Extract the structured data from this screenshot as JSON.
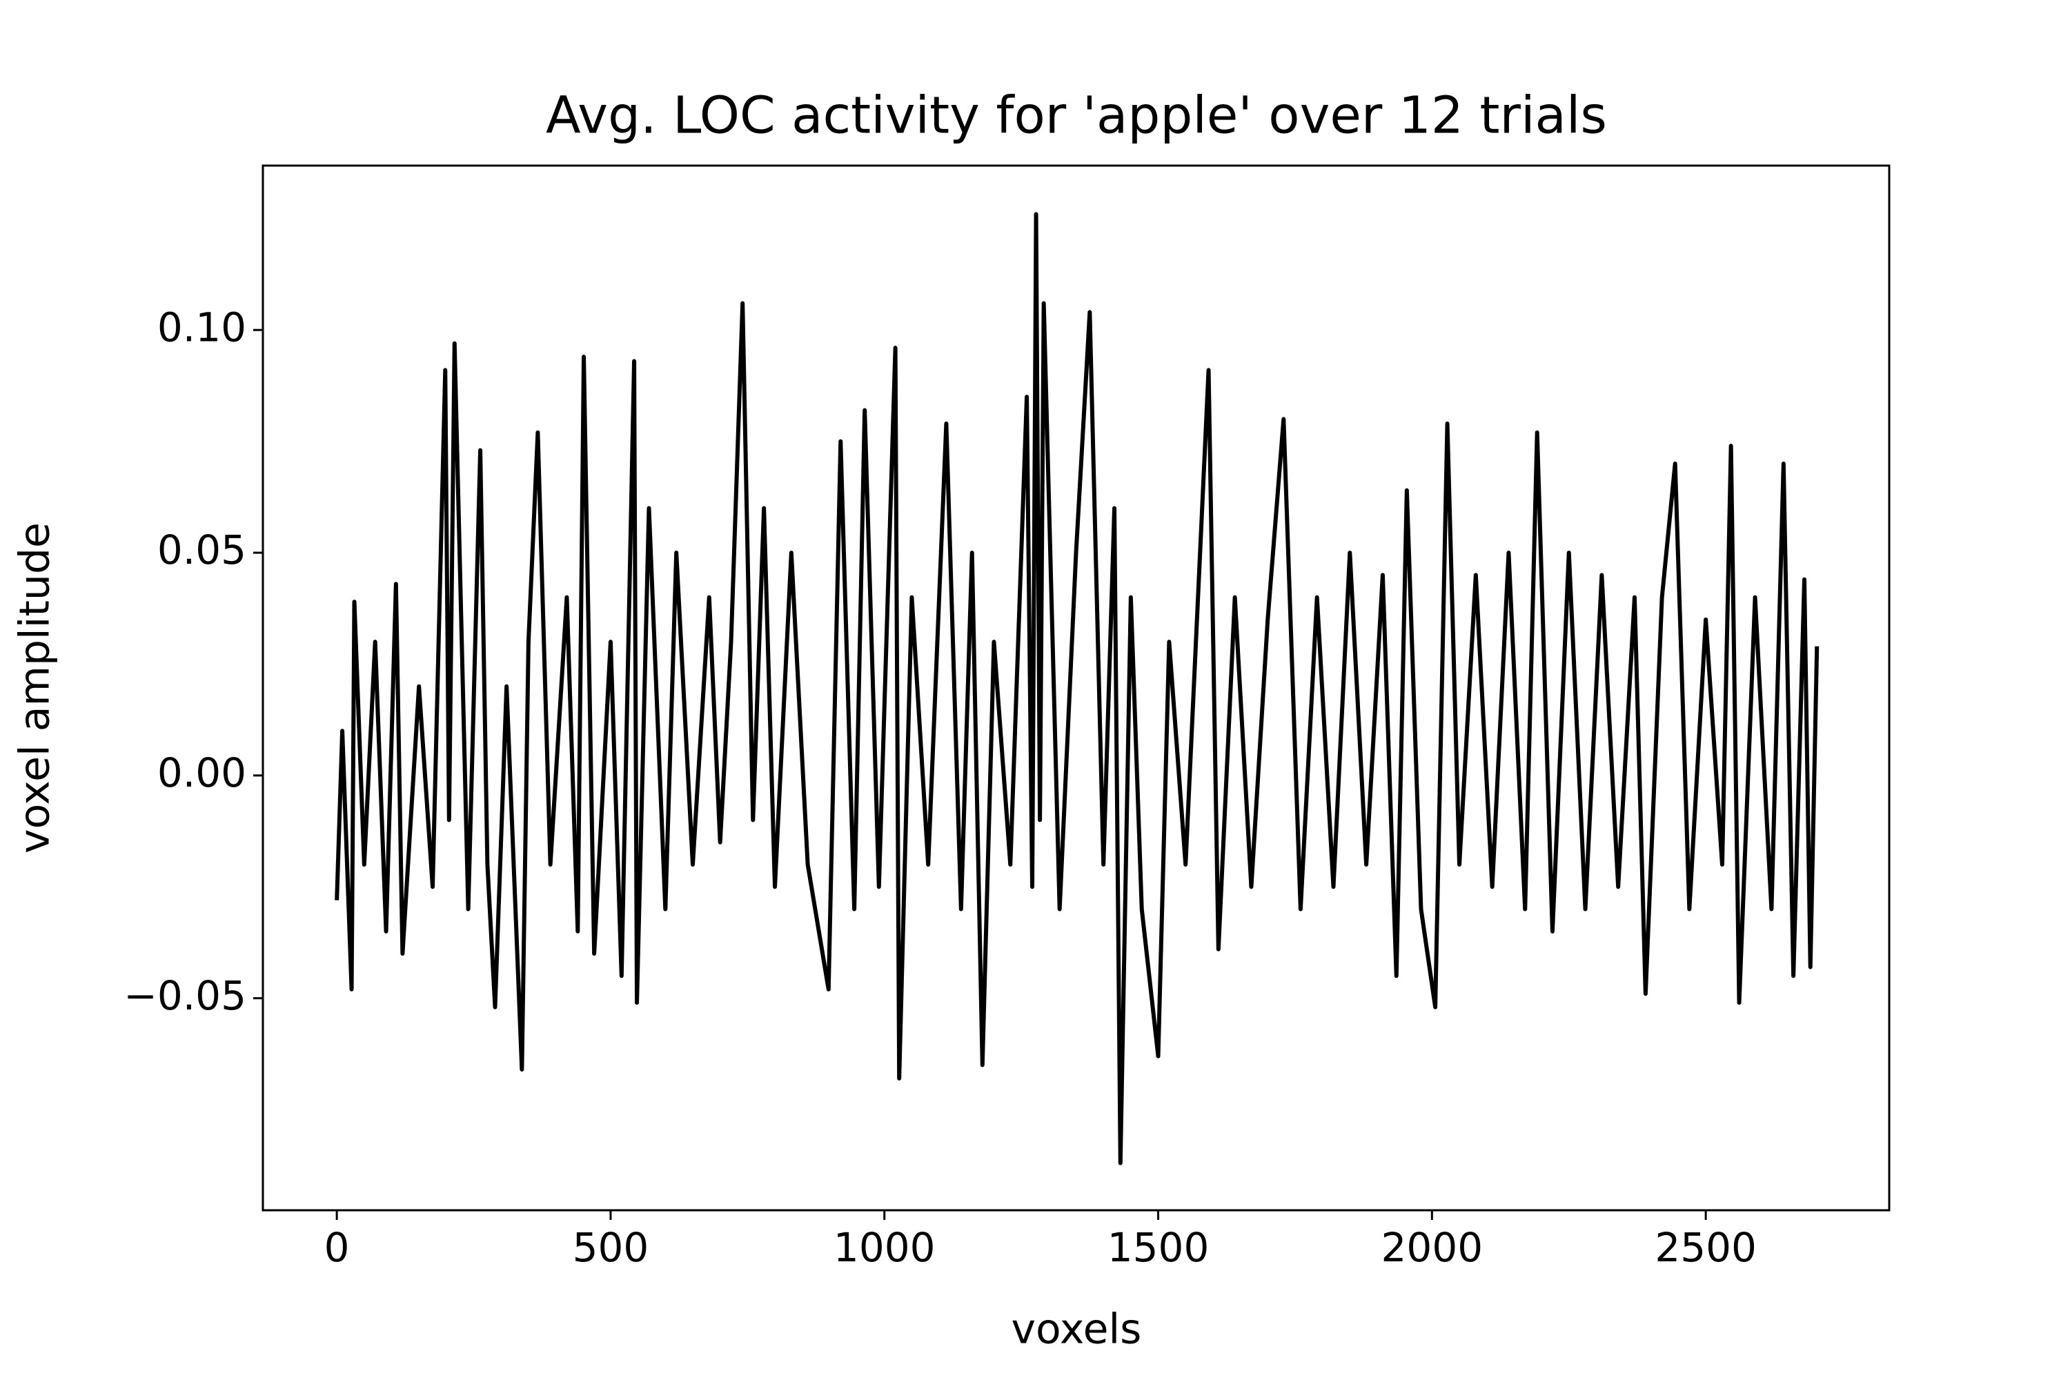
{
  "chart_data": {
    "type": "line",
    "title": "Avg. LOC activity for 'apple' over 12 trials",
    "x_label": "voxels",
    "y_label": "voxel amplitude",
    "x": [
      0,
      10,
      27,
      32,
      50,
      70,
      90,
      108,
      120,
      150,
      175,
      198,
      205,
      215,
      240,
      262,
      275,
      289,
      310,
      338,
      350,
      367,
      390,
      420,
      440,
      451,
      470,
      500,
      520,
      543,
      548,
      570,
      600,
      620,
      650,
      680,
      700,
      720,
      741,
      760,
      780,
      800,
      830,
      860,
      898,
      920,
      945,
      964,
      990,
      1020,
      1027,
      1050,
      1080,
      1113,
      1140,
      1160,
      1179,
      1200,
      1230,
      1260,
      1270,
      1277,
      1284,
      1291,
      1320,
      1350,
      1375,
      1400,
      1420,
      1431,
      1450,
      1470,
      1500,
      1520,
      1550,
      1592,
      1610,
      1640,
      1670,
      1700,
      1729,
      1760,
      1790,
      1820,
      1850,
      1880,
      1910,
      1935,
      1954,
      1980,
      2006,
      2028,
      2050,
      2080,
      2110,
      2140,
      2170,
      2192,
      2220,
      2250,
      2280,
      2310,
      2340,
      2370,
      2390,
      2420,
      2444,
      2470,
      2500,
      2530,
      2546,
      2561,
      2590,
      2620,
      2642,
      2660,
      2680,
      2691,
      2703
    ],
    "series": [
      {
        "name": "voxel amplitude",
        "color": "#000000",
        "values": [
          -0.028,
          0.01,
          -0.048,
          0.039,
          -0.02,
          0.03,
          -0.035,
          0.043,
          -0.04,
          0.02,
          -0.025,
          0.091,
          -0.01,
          0.097,
          -0.03,
          0.073,
          -0.02,
          -0.052,
          0.02,
          -0.066,
          0.03,
          0.077,
          -0.02,
          0.04,
          -0.035,
          0.094,
          -0.04,
          0.03,
          -0.045,
          0.093,
          -0.051,
          0.06,
          -0.03,
          0.05,
          -0.02,
          0.04,
          -0.015,
          0.03,
          0.106,
          -0.01,
          0.06,
          -0.025,
          0.05,
          -0.02,
          -0.048,
          0.075,
          -0.03,
          0.082,
          -0.025,
          0.096,
          -0.068,
          0.04,
          -0.02,
          0.079,
          -0.03,
          0.05,
          -0.065,
          0.03,
          -0.02,
          0.085,
          -0.025,
          0.126,
          -0.01,
          0.106,
          -0.03,
          0.05,
          0.104,
          -0.02,
          0.06,
          -0.087,
          0.04,
          -0.03,
          -0.063,
          0.03,
          -0.02,
          0.091,
          -0.039,
          0.04,
          -0.025,
          0.035,
          0.08,
          -0.03,
          0.04,
          -0.025,
          0.05,
          -0.02,
          0.045,
          -0.045,
          0.064,
          -0.03,
          -0.052,
          0.079,
          -0.02,
          0.045,
          -0.025,
          0.05,
          -0.03,
          0.077,
          -0.035,
          0.05,
          -0.03,
          0.045,
          -0.025,
          0.04,
          -0.049,
          0.04,
          0.07,
          -0.03,
          0.035,
          -0.02,
          0.074,
          -0.051,
          0.04,
          -0.03,
          0.07,
          -0.045,
          0.044,
          -0.043,
          0.029
        ]
      }
    ],
    "xlim": [
      -135,
      2835
    ],
    "ylim": [
      -0.0976,
      0.1369
    ],
    "xticks": [
      0,
      500,
      1000,
      1500,
      2000,
      2500
    ],
    "yticks": [
      {
        "value": -0.05,
        "label": "−0.05"
      },
      {
        "value": 0,
        "label": "0.00"
      },
      {
        "value": 0.05,
        "label": "0.05"
      },
      {
        "value": 0.1,
        "label": "0.10"
      }
    ],
    "grid": false
  }
}
